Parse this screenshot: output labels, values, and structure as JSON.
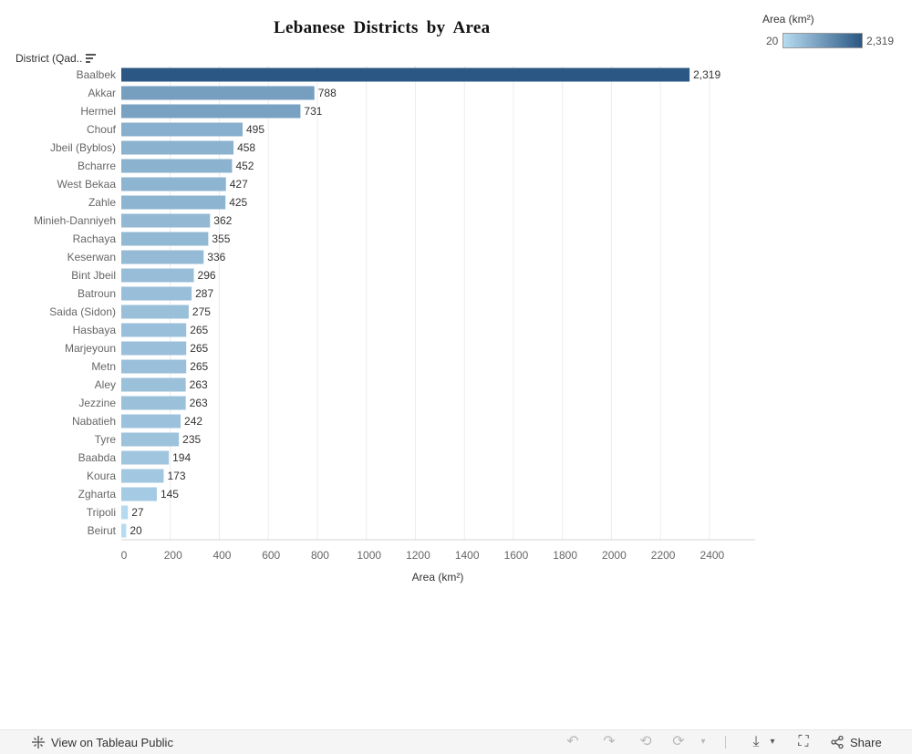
{
  "chart_data": {
    "type": "bar",
    "orientation": "horizontal",
    "title": "Lebanese Districts by Area",
    "dimension_header": "District (Qad..",
    "xlabel": "Area (km²)",
    "xlim": [
      0,
      2600
    ],
    "xticks": [
      0,
      200,
      400,
      600,
      800,
      1000,
      1200,
      1400,
      1600,
      1800,
      2000,
      2200,
      2400
    ],
    "categories": [
      "Baalbek",
      "Akkar",
      "Hermel",
      "Chouf",
      "Jbeil (Byblos)",
      "Bcharre",
      "West Bekaa",
      "Zahle",
      "Minieh-Danniyeh",
      "Rachaya",
      "Keserwan",
      "Bint Jbeil",
      "Batroun",
      "Saida (Sidon)",
      "Hasbaya",
      "Marjeyoun",
      "Metn",
      "Aley",
      "Jezzine",
      "Nabatieh",
      "Tyre",
      "Baabda",
      "Koura",
      "Zgharta",
      "Tripoli",
      "Beirut"
    ],
    "values": [
      2319,
      788,
      731,
      495,
      458,
      452,
      427,
      425,
      362,
      355,
      336,
      296,
      287,
      275,
      265,
      265,
      265,
      263,
      263,
      242,
      235,
      194,
      173,
      145,
      27,
      20
    ],
    "value_labels": [
      "2,319",
      "788",
      "731",
      "495",
      "458",
      "452",
      "427",
      "425",
      "362",
      "355",
      "336",
      "296",
      "287",
      "275",
      "265",
      "265",
      "265",
      "263",
      "263",
      "242",
      "235",
      "194",
      "173",
      "145",
      "27",
      "20"
    ],
    "grid": true,
    "color_scale": {
      "min": 20,
      "max": 2319,
      "min_color": "#b7dbf1",
      "max_color": "#2a5783"
    }
  },
  "legend": {
    "title": "Area (km²)",
    "min_label": "20",
    "max_label": "2,319"
  },
  "footer": {
    "view_label": "View on Tableau Public",
    "share_label": "Share"
  }
}
